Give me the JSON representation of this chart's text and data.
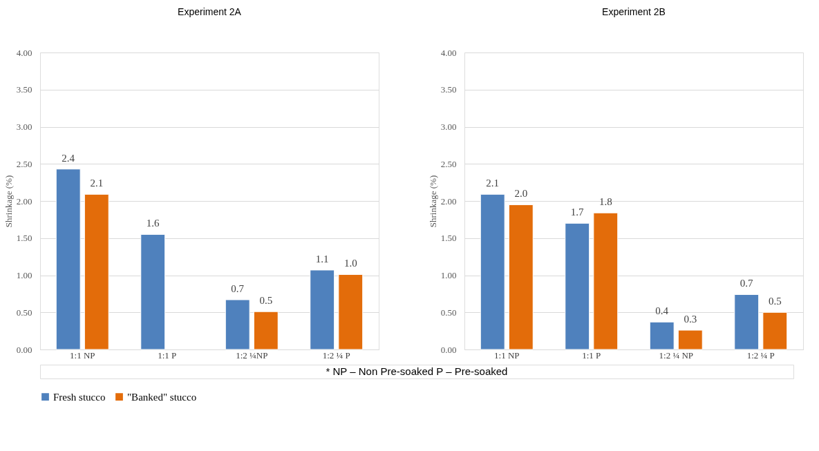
{
  "chart_data": [
    {
      "type": "bar",
      "title": "Experiment 2A",
      "ylabel": "Shrinkage (%)",
      "categories": [
        "1:1 NP",
        "1:1 P",
        "1:2 ¼NP",
        "1:2 ¼ P"
      ],
      "series": [
        {
          "name": "Fresh stucco",
          "color": "#4f81bd",
          "values": [
            2.43,
            1.55,
            0.67,
            1.07
          ],
          "value_labels": [
            "2.4",
            "1.6",
            "0.7",
            "1.1"
          ]
        },
        {
          "name": "\"Banked\" stucco",
          "color": "#e36c0a",
          "values": [
            2.09,
            null,
            0.51,
            1.01
          ],
          "value_labels": [
            "2.1",
            null,
            "0.5",
            "1.0"
          ]
        }
      ],
      "ylim": [
        0,
        4
      ],
      "yticks": [
        {
          "value": 0,
          "label": "0.00"
        },
        {
          "value": 0.5,
          "label": "0.50"
        },
        {
          "value": 1,
          "label": "1.00"
        },
        {
          "value": 1.5,
          "label": "1.50"
        },
        {
          "value": 2,
          "label": "2.00"
        },
        {
          "value": 2.5,
          "label": "2.50"
        },
        {
          "value": 3,
          "label": "3.00"
        },
        {
          "value": 3.5,
          "label": "3.50"
        },
        {
          "value": 4,
          "label": "4.00"
        }
      ],
      "grid": "y",
      "legend": "bottom",
      "annotations": [
        "* NP – Non Pre-soaked     P – Pre-soaked"
      ]
    },
    {
      "type": "bar",
      "title": "Experiment 2B",
      "ylabel": "Shrinkage (%)",
      "categories": [
        "1:1 NP",
        "1:1 P",
        "1:2 ¼ NP",
        "1:2 ¼ P"
      ],
      "series": [
        {
          "name": "Fresh stucco",
          "color": "#4f81bd",
          "values": [
            2.09,
            1.7,
            0.37,
            0.74
          ],
          "value_labels": [
            "2.1",
            "1.7",
            "0.4",
            "0.7"
          ]
        },
        {
          "name": "\"Banked\" stucco",
          "color": "#e36c0a",
          "values": [
            1.95,
            1.84,
            0.26,
            0.5
          ],
          "value_labels": [
            "2.0",
            "1.8",
            "0.3",
            "0.5"
          ]
        }
      ],
      "ylim": [
        0,
        4
      ],
      "yticks": [
        {
          "value": 0,
          "label": "0.00"
        },
        {
          "value": 0.5,
          "label": "0.50"
        },
        {
          "value": 1,
          "label": "1.00"
        },
        {
          "value": 1.5,
          "label": "1.50"
        },
        {
          "value": 2,
          "label": "2.00"
        },
        {
          "value": 2.5,
          "label": "2.50"
        },
        {
          "value": 3,
          "label": "3.00"
        },
        {
          "value": 3.5,
          "label": "3.50"
        },
        {
          "value": 4,
          "label": "4.00"
        }
      ],
      "grid": "y",
      "legend": "bottom"
    }
  ]
}
